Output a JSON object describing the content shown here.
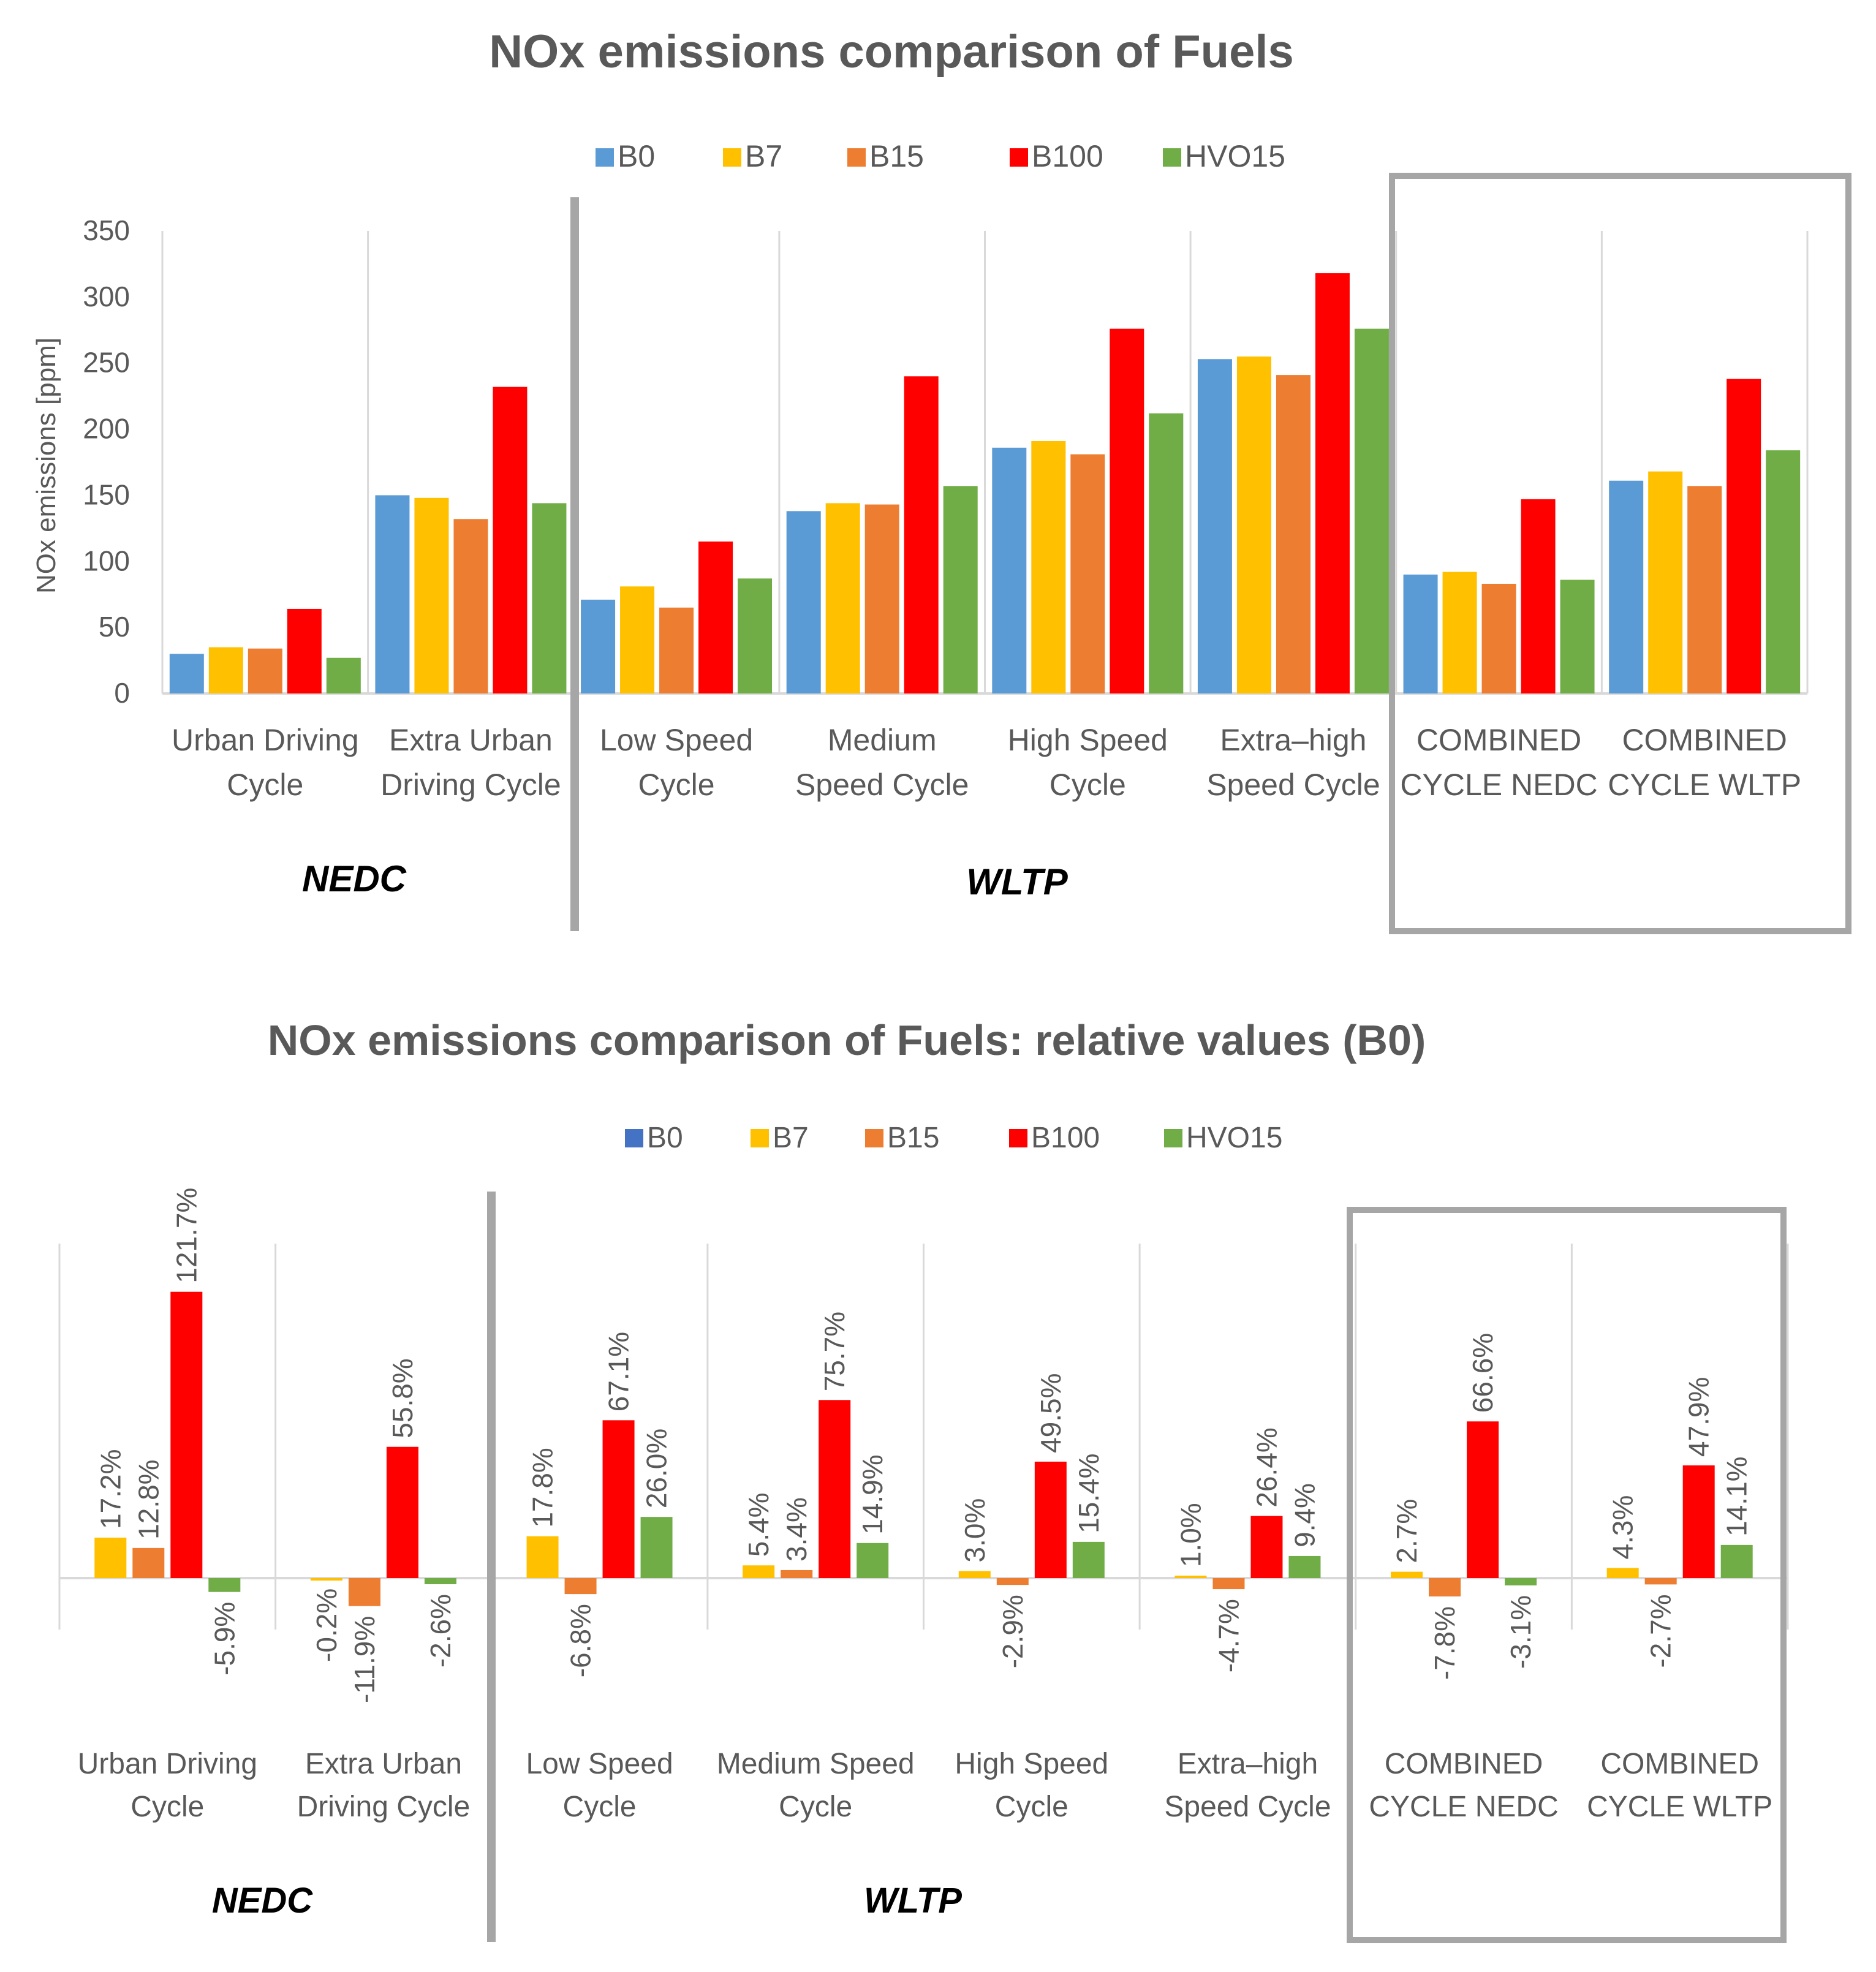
{
  "colors": {
    "B0": "#5B9BD5",
    "B7": "#FFC000",
    "B15": "#ED7D31",
    "B100": "#FF0000",
    "HVO15": "#70AD47",
    "B0_relative": "#4472C4",
    "text": "#595959",
    "grid": "#D9D9D9",
    "separator": "#A6A6A6"
  },
  "chart_data": [
    {
      "type": "bar",
      "title": "NOx emissions comparison of Fuels",
      "ylabel": "NOx emissions [ppm]",
      "xlabel": "",
      "ylim": [
        0,
        350
      ],
      "ytick_step": 50,
      "ytick_labels": [
        "0",
        "50",
        "100",
        "150",
        "200",
        "250",
        "300",
        "350"
      ],
      "legend_position": "top",
      "legend": [
        "B0",
        "B7",
        "B15",
        "B100",
        "HVO15"
      ],
      "categories": [
        [
          "Urban Driving",
          "Cycle"
        ],
        [
          "Extra Urban",
          "Driving Cycle"
        ],
        [
          "Low Speed",
          "Cycle"
        ],
        [
          "Medium",
          "Speed Cycle"
        ],
        [
          "High Speed",
          "Cycle"
        ],
        [
          "Extra–high",
          "Speed Cycle"
        ],
        [
          "COMBINED",
          "CYCLE NEDC"
        ],
        [
          "COMBINED",
          "CYCLE WLTP"
        ]
      ],
      "groups": [
        {
          "label": "NEDC",
          "span": [
            0,
            1
          ]
        },
        {
          "label": "WLTP",
          "span": [
            2,
            5
          ]
        }
      ],
      "highlight_box_span": [
        6,
        7
      ],
      "series": [
        {
          "name": "B0",
          "values": [
            30,
            150,
            71,
            138,
            186,
            253,
            90,
            161
          ]
        },
        {
          "name": "B7",
          "values": [
            35,
            148,
            81,
            144,
            191,
            255,
            92,
            168
          ]
        },
        {
          "name": "B15",
          "values": [
            34,
            132,
            65,
            143,
            181,
            241,
            83,
            157
          ]
        },
        {
          "name": "B100",
          "values": [
            64,
            232,
            115,
            240,
            276,
            318,
            147,
            238
          ]
        },
        {
          "name": "HVO15",
          "values": [
            27,
            144,
            87,
            157,
            212,
            276,
            86,
            184
          ]
        }
      ]
    },
    {
      "type": "bar",
      "title": "NOx emissions comparison of Fuels: relative values (B0)",
      "ylabel": "",
      "xlabel": "",
      "ylim": [
        -40,
        140
      ],
      "legend_position": "top",
      "legend": [
        "B0",
        "B7",
        "B15",
        "B100",
        "HVO15"
      ],
      "categories": [
        [
          "Urban Driving",
          "Cycle"
        ],
        [
          "Extra Urban",
          "Driving Cycle"
        ],
        [
          "Low Speed",
          "Cycle"
        ],
        [
          "Medium Speed",
          "Cycle"
        ],
        [
          "High Speed",
          "Cycle"
        ],
        [
          "Extra–high",
          "Speed Cycle"
        ],
        [
          "COMBINED",
          "CYCLE NEDC"
        ],
        [
          "COMBINED",
          "CYCLE WLTP"
        ]
      ],
      "groups": [
        {
          "label": "NEDC",
          "span": [
            0,
            1
          ]
        },
        {
          "label": "WLTP",
          "span": [
            2,
            5
          ]
        }
      ],
      "highlight_box_span": [
        6,
        7
      ],
      "series": [
        {
          "name": "B0",
          "values": [
            0,
            0,
            0,
            0,
            0,
            0,
            0,
            0
          ],
          "labels": [
            "",
            "",
            "",
            "",
            "",
            "",
            "",
            ""
          ]
        },
        {
          "name": "B7",
          "values": [
            17.2,
            -0.2,
            17.8,
            5.4,
            3.0,
            1.0,
            2.7,
            4.3
          ],
          "labels": [
            "17.2%",
            "-0.2%",
            "17.8%",
            "5.4%",
            "3.0%",
            "1.0%",
            "2.7%",
            "4.3%"
          ]
        },
        {
          "name": "B15",
          "values": [
            12.8,
            -11.9,
            -6.8,
            3.4,
            -2.9,
            -4.7,
            -7.8,
            -2.7
          ],
          "labels": [
            "12.8%",
            "-11.9%",
            "-6.8%",
            "3.4%",
            "-2.9%",
            "-4.7%",
            "-7.8%",
            "-2.7%"
          ]
        },
        {
          "name": "B100",
          "values": [
            121.7,
            55.8,
            67.1,
            75.7,
            49.5,
            26.4,
            66.6,
            47.9
          ],
          "labels": [
            "121.7%",
            "55.8%",
            "67.1%",
            "75.7%",
            "49.5%",
            "26.4%",
            "66.6%",
            "47.9%"
          ]
        },
        {
          "name": "HVO15",
          "values": [
            -5.9,
            -2.6,
            26.0,
            14.9,
            15.4,
            9.4,
            -3.1,
            14.1
          ],
          "labels": [
            "-5.9%",
            "-2.6%",
            "26.0%",
            "14.9%",
            "15.4%",
            "9.4%",
            "-3.1%",
            "14.1%"
          ]
        }
      ]
    }
  ]
}
